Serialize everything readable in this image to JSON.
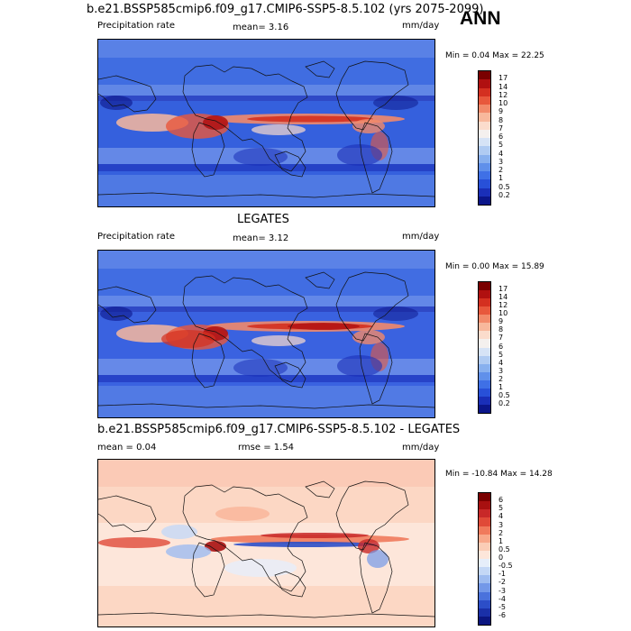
{
  "season": "ANN",
  "chart_data": [
    {
      "type": "heatmap",
      "title": "b.e21.BSSP585cmip6.f09_g17.CMIP6-SSP5-8.5.102 (yrs 2075-2099)",
      "left_label": "Precipitation rate",
      "center_label": "mean=  3.16",
      "mean": 3.16,
      "units": "mm/day",
      "minmax_label": "Min =   0.04 Max =  22.25",
      "min": 0.04,
      "max": 22.25,
      "colorbar_labels": [
        "17",
        "14",
        "12",
        "10",
        "9",
        "8",
        "7",
        "6",
        "5",
        "4",
        "3",
        "2",
        "1",
        "0.5",
        "0.2"
      ],
      "colorbar_colors": [
        "#7a0000",
        "#b01010",
        "#d43020",
        "#e8583c",
        "#f28a6a",
        "#f8b89c",
        "#fbdccc",
        "#f4f0ee",
        "#d6e3f6",
        "#b0cbf2",
        "#88b0ee",
        "#6090ea",
        "#3f70e6",
        "#2850d8",
        "#1a2fb8",
        "#0b168a"
      ]
    },
    {
      "type": "heatmap",
      "title": "LEGATES",
      "left_label": "Precipitation rate",
      "center_label": "mean=  3.12",
      "mean": 3.12,
      "units": "mm/day",
      "minmax_label": "Min =   0.00 Max =  15.89",
      "min": 0.0,
      "max": 15.89,
      "colorbar_labels": [
        "17",
        "14",
        "12",
        "10",
        "9",
        "8",
        "7",
        "6",
        "5",
        "4",
        "3",
        "2",
        "1",
        "0.5",
        "0.2"
      ],
      "colorbar_colors": [
        "#7a0000",
        "#b01010",
        "#d43020",
        "#e8583c",
        "#f28a6a",
        "#f8b89c",
        "#fbdccc",
        "#f4f0ee",
        "#d6e3f6",
        "#b0cbf2",
        "#88b0ee",
        "#6090ea",
        "#3f70e6",
        "#2850d8",
        "#1a2fb8",
        "#0b168a"
      ]
    },
    {
      "type": "heatmap",
      "title": "b.e21.BSSP585cmip6.f09_g17.CMIP6-SSP5-8.5.102 - LEGATES",
      "left_label": "mean =   0.04",
      "center_label": "rmse =   1.54",
      "mean": 0.04,
      "rmse": 1.54,
      "units": "mm/day",
      "minmax_label": "Min = -10.84 Max =  14.28",
      "min": -10.84,
      "max": 14.28,
      "colorbar_labels": [
        "6",
        "5",
        "4",
        "3",
        "2",
        "1",
        "0.5",
        "0",
        "-0.5",
        "-1",
        "-2",
        "-3",
        "-4",
        "-5",
        "-6"
      ],
      "colorbar_colors": [
        "#7a0000",
        "#a81010",
        "#c82828",
        "#e04a38",
        "#f07a5c",
        "#f8a88a",
        "#fbcdb6",
        "#fde6da",
        "#e6eefa",
        "#c4d8f6",
        "#9ebcf0",
        "#7398e8",
        "#4a72dc",
        "#2c4ec8",
        "#1a30a8",
        "#0b1680"
      ]
    }
  ]
}
